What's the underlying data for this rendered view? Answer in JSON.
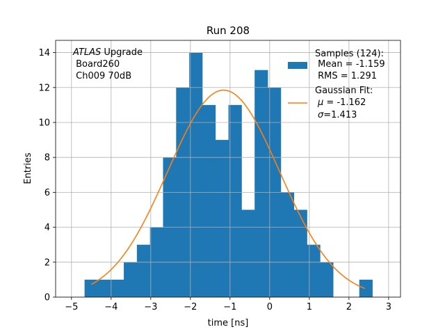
{
  "chart_data": {
    "type": "bar",
    "title": "Run 208",
    "xlabel": "time [ns]",
    "ylabel": "Entries",
    "xlim": [
      -5.4,
      3.3
    ],
    "ylim": [
      0,
      14.7
    ],
    "grid": true,
    "xticks": [
      -5,
      -4,
      -3,
      -2,
      -1,
      0,
      1,
      2,
      3
    ],
    "yticks": [
      0,
      2,
      4,
      6,
      8,
      10,
      12,
      14
    ],
    "histogram": {
      "name": "Samples",
      "color": "#1f77b4",
      "bin_edges": [
        -4.67,
        -4.34,
        -4.01,
        -3.68,
        -3.35,
        -3.02,
        -2.69,
        -2.36,
        -2.03,
        -1.7,
        -1.37,
        -1.04,
        -0.71,
        -0.38,
        -0.05,
        0.28,
        0.61,
        0.94,
        1.27,
        1.6,
        1.93,
        2.26,
        2.59
      ],
      "counts": [
        1,
        1,
        1,
        2,
        3,
        4,
        8,
        12,
        14,
        11,
        9,
        11,
        5,
        13,
        12,
        6,
        5,
        3,
        2,
        0,
        0,
        1
      ]
    },
    "fit": {
      "name": "Gaussian Fit",
      "color": "#ff7f0e",
      "mu": -1.162,
      "sigma": 1.413,
      "amplitude": 11.85,
      "x_range": [
        -4.5,
        2.4
      ]
    },
    "legend": {
      "location": "upper right",
      "samples_line1": "Samples (124):",
      "samples_line2": " Mean = -1.159",
      "samples_line3": " RMS = 1.291",
      "fit_line1": "Gaussian Fit:",
      "fit_mu_symbol": "μ",
      "fit_mu_value": " = -1.162",
      "fit_sigma_symbol": "σ",
      "fit_sigma_value": "=1.413"
    },
    "annotation": {
      "atlas": "ATLAS",
      "upgrade": " Upgrade",
      "line2": " Board260",
      "line3": " Ch009 70dB"
    }
  }
}
